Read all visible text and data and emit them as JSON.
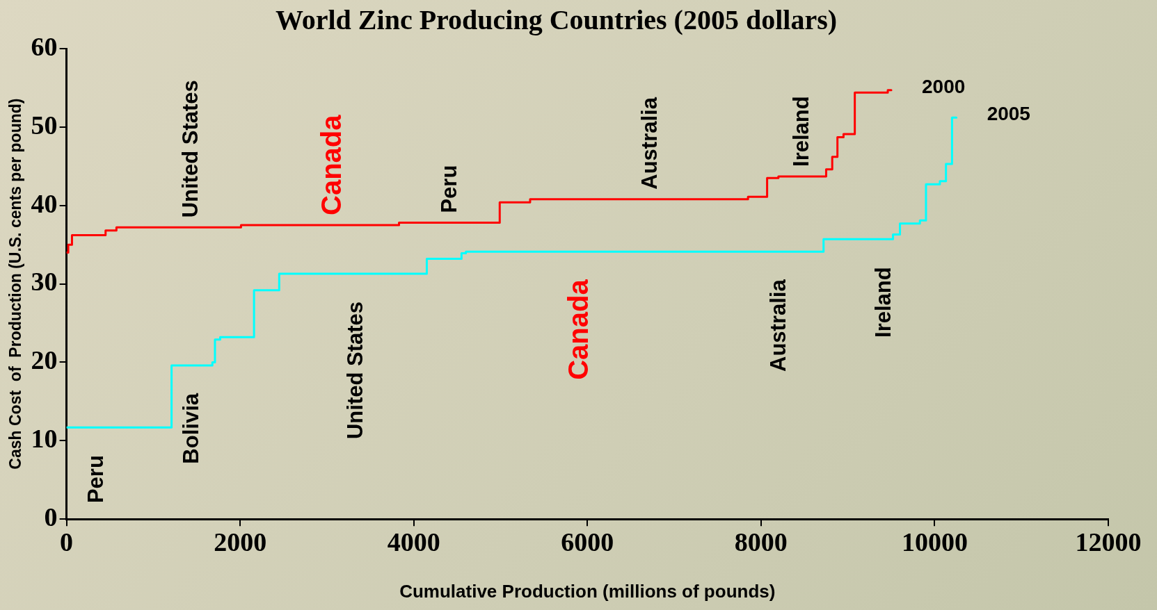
{
  "chart_data": {
    "type": "step",
    "title": "World Zinc Producing Countries (2005 dollars)",
    "xlabel": "Cumulative Production (millions of pounds)",
    "ylabel": "Cash Cost  of  Production (U.S. cents per pound)",
    "xlim": [
      0,
      12000
    ],
    "xticks": [
      0,
      2000,
      4000,
      6000,
      8000,
      10000,
      12000
    ],
    "ylim": [
      0,
      60
    ],
    "yticks": [
      0,
      10,
      20,
      30,
      40,
      50,
      60
    ],
    "grid": false,
    "legend": false,
    "series": [
      {
        "name": "2000",
        "color": "#ff0000",
        "x": [
          0,
          20,
          63,
          450,
          575,
          2010,
          3830,
          4990,
          5340,
          7850,
          8070,
          8200,
          8750,
          8820,
          8880,
          8950,
          9080,
          9460,
          9500
        ],
        "values": [
          34,
          35,
          36.2,
          36.8,
          37.2,
          37.5,
          37.8,
          40.4,
          40.8,
          41.1,
          43.5,
          43.7,
          44.6,
          46.2,
          48.7,
          49.1,
          54.4,
          54.7,
          54.7
        ]
      },
      {
        "name": "2005",
        "color": "#00ffff",
        "x": [
          0,
          1210,
          1680,
          1710,
          1770,
          2160,
          2450,
          4150,
          4550,
          4600,
          8720,
          9520,
          9600,
          9830,
          9900,
          10060,
          10130,
          10200,
          10250
        ],
        "values": [
          11.7,
          19.6,
          20,
          22.9,
          23.2,
          29.2,
          31.3,
          33.2,
          33.9,
          34.1,
          35.7,
          36.3,
          37.7,
          38.1,
          42.7,
          43.1,
          45.3,
          51.2,
          51.2
        ]
      }
    ],
    "annotations": [
      {
        "text": "United States",
        "x": 1440,
        "y": 37.2
      },
      {
        "text": "Canada",
        "x": 3070,
        "y": 37.5
      },
      {
        "text": "Peru",
        "x": 4420,
        "y": 37.8
      },
      {
        "text": "Australia",
        "x": 6730,
        "y": 40.8
      },
      {
        "text": "Ireland",
        "x": 8480,
        "y": 43.7
      },
      {
        "text": "Peru",
        "x": 350,
        "y": 11.7
      },
      {
        "text": "Bolivia",
        "x": 1450,
        "y": 19.6
      },
      {
        "text": "United States",
        "x": 3340,
        "y": 31.3
      },
      {
        "text": "Canada",
        "x": 5920,
        "y": 34.1
      },
      {
        "text": "Australia",
        "x": 8210,
        "y": 34.1
      },
      {
        "text": "Ireland",
        "x": 9420,
        "y": 35.7
      }
    ]
  }
}
